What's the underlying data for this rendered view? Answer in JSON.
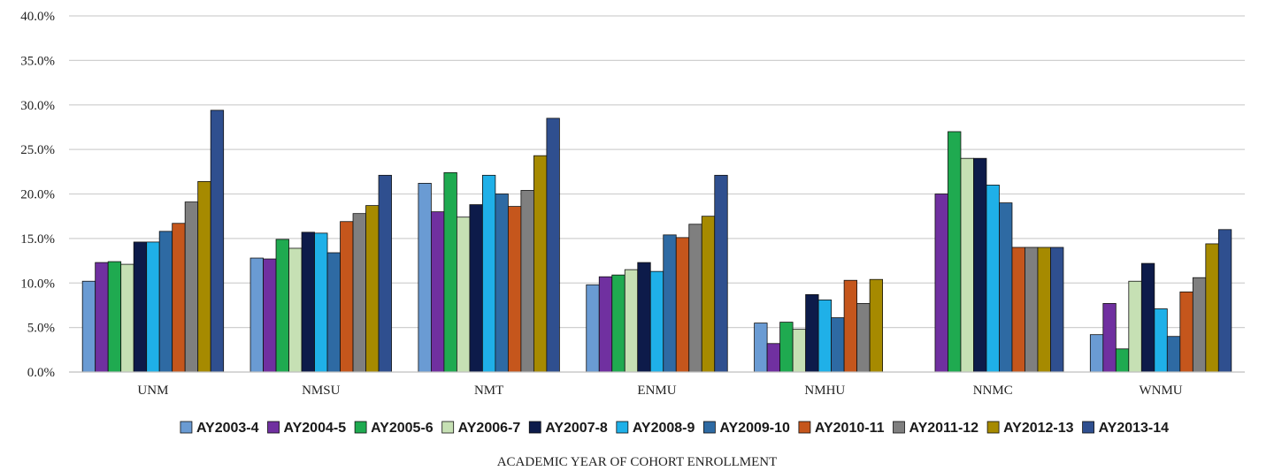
{
  "chart_data": {
    "type": "bar",
    "title": "",
    "xlabel": "ACADEMIC YEAR OF COHORT ENROLLMENT",
    "ylabel": "",
    "ylim": [
      0,
      40
    ],
    "yticks": [
      0,
      5,
      10,
      15,
      20,
      25,
      30,
      35,
      40
    ],
    "ytick_labels": [
      "0.0%",
      "5.0%",
      "10.0%",
      "15.0%",
      "20.0%",
      "25.0%",
      "30.0%",
      "35.0%",
      "40.0%"
    ],
    "grid": true,
    "legend_position": "bottom",
    "categories": [
      "UNM",
      "NMSU",
      "NMT",
      "ENMU",
      "NMHU",
      "NNMC",
      "WNMU"
    ],
    "series": [
      {
        "name": "AY2003-4",
        "color": "#6a9bd3",
        "values": [
          10.2,
          12.8,
          21.2,
          9.8,
          5.5,
          null,
          4.2
        ]
      },
      {
        "name": "AY2004-5",
        "color": "#7030a0",
        "values": [
          12.3,
          12.7,
          18.0,
          10.7,
          3.2,
          20.0,
          7.7
        ]
      },
      {
        "name": "AY2005-6",
        "color": "#1faa50",
        "values": [
          12.4,
          14.9,
          22.4,
          10.9,
          5.6,
          27.0,
          2.6
        ]
      },
      {
        "name": "AY2006-7",
        "color": "#c6e0b4",
        "values": [
          12.1,
          13.9,
          17.4,
          11.5,
          4.8,
          24.0,
          10.2
        ]
      },
      {
        "name": "AY2007-8",
        "color": "#0d1b4a",
        "values": [
          14.6,
          15.7,
          18.8,
          12.3,
          8.7,
          24.0,
          12.2
        ]
      },
      {
        "name": "AY2008-9",
        "color": "#1fb0e8",
        "values": [
          14.6,
          15.6,
          22.1,
          11.3,
          8.1,
          21.0,
          7.1
        ]
      },
      {
        "name": "AY2009-10",
        "color": "#2e6aa3",
        "values": [
          15.8,
          13.4,
          20.0,
          15.4,
          6.1,
          19.0,
          4.0
        ]
      },
      {
        "name": "AY2010-11",
        "color": "#c5561c",
        "values": [
          16.7,
          16.9,
          18.6,
          15.1,
          10.3,
          14.0,
          9.0
        ]
      },
      {
        "name": "AY2011-12",
        "color": "#7f7f7f",
        "values": [
          19.1,
          17.8,
          20.4,
          16.6,
          7.7,
          14.0,
          10.6
        ]
      },
      {
        "name": "AY2012-13",
        "color": "#a68a00",
        "values": [
          21.4,
          18.7,
          24.3,
          17.5,
          10.4,
          14.0,
          14.4
        ]
      },
      {
        "name": "AY2013-14",
        "color": "#2f4f8f",
        "values": [
          29.4,
          22.1,
          28.5,
          22.1,
          null,
          14.0,
          16.0
        ]
      }
    ]
  }
}
